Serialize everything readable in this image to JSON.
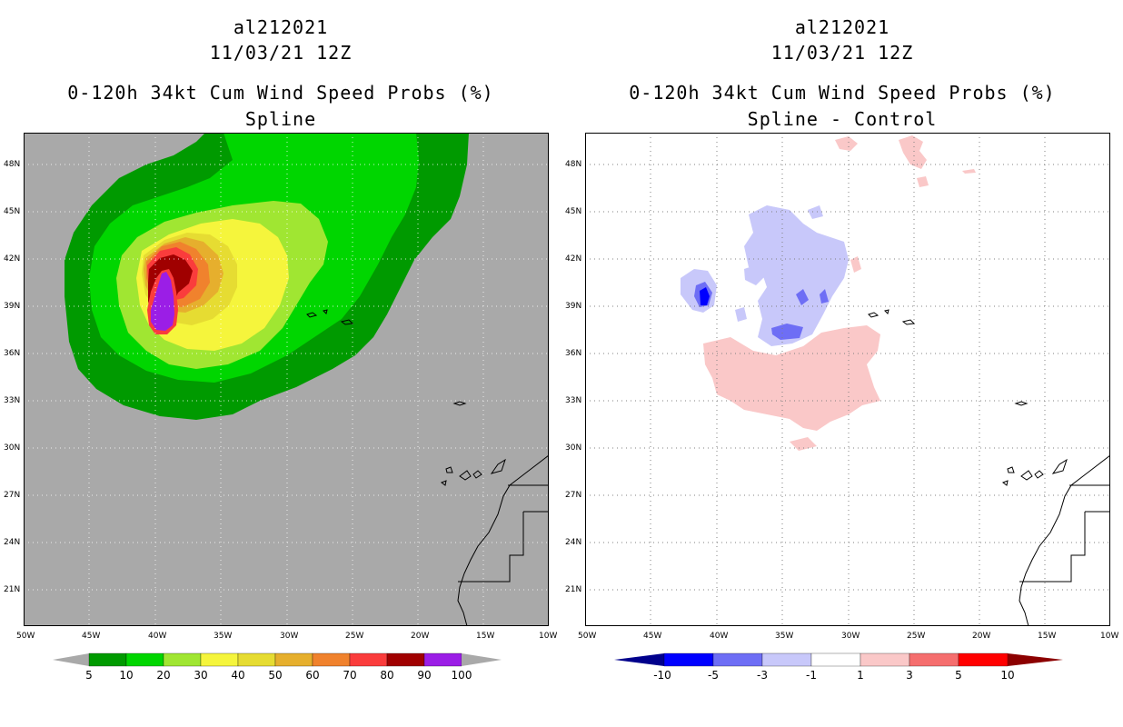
{
  "left": {
    "storm": "al212021",
    "datetime": "11/03/21 12Z",
    "product": "0-120h 34kt Cum Wind Speed Probs (%)",
    "subtitle": "Spline",
    "lat_labels": [
      "48N",
      "45N",
      "42N",
      "39N",
      "36N",
      "33N",
      "30N",
      "27N",
      "24N",
      "21N"
    ],
    "lon_labels": [
      "50W",
      "45W",
      "40W",
      "35W",
      "30W",
      "25W",
      "20W",
      "15W",
      "10W"
    ],
    "colorbar_labels": [
      "5",
      "10",
      "20",
      "30",
      "40",
      "50",
      "60",
      "70",
      "80",
      "90",
      "100"
    ],
    "colorbar_colors": [
      "#009a00",
      "#00d600",
      "#a0e632",
      "#f5f53c",
      "#e6dc32",
      "#e6af2d",
      "#f0822d",
      "#fa3c3c",
      "#a00000",
      "#9b1ee6"
    ]
  },
  "right": {
    "storm": "al212021",
    "datetime": "11/03/21 12Z",
    "product": "0-120h 34kt Cum Wind Speed Probs (%)",
    "subtitle": "Spline - Control",
    "lat_labels": [
      "48N",
      "45N",
      "42N",
      "39N",
      "36N",
      "33N",
      "30N",
      "27N",
      "24N",
      "21N"
    ],
    "lon_labels": [
      "50W",
      "45W",
      "40W",
      "35W",
      "30W",
      "25W",
      "20W",
      "15W",
      "10W"
    ],
    "colorbar_labels": [
      "-10",
      "-5",
      "-3",
      "-1",
      "1",
      "3",
      "5",
      "10"
    ],
    "colorbar_colors": [
      "#0000ff",
      "#6e6ef5",
      "#c8c8fa",
      "#ffffff",
      "#fac8c8",
      "#f56e6e",
      "#ff0000"
    ],
    "colorbar_ends": [
      "#00008c",
      "#8c0000"
    ]
  }
}
